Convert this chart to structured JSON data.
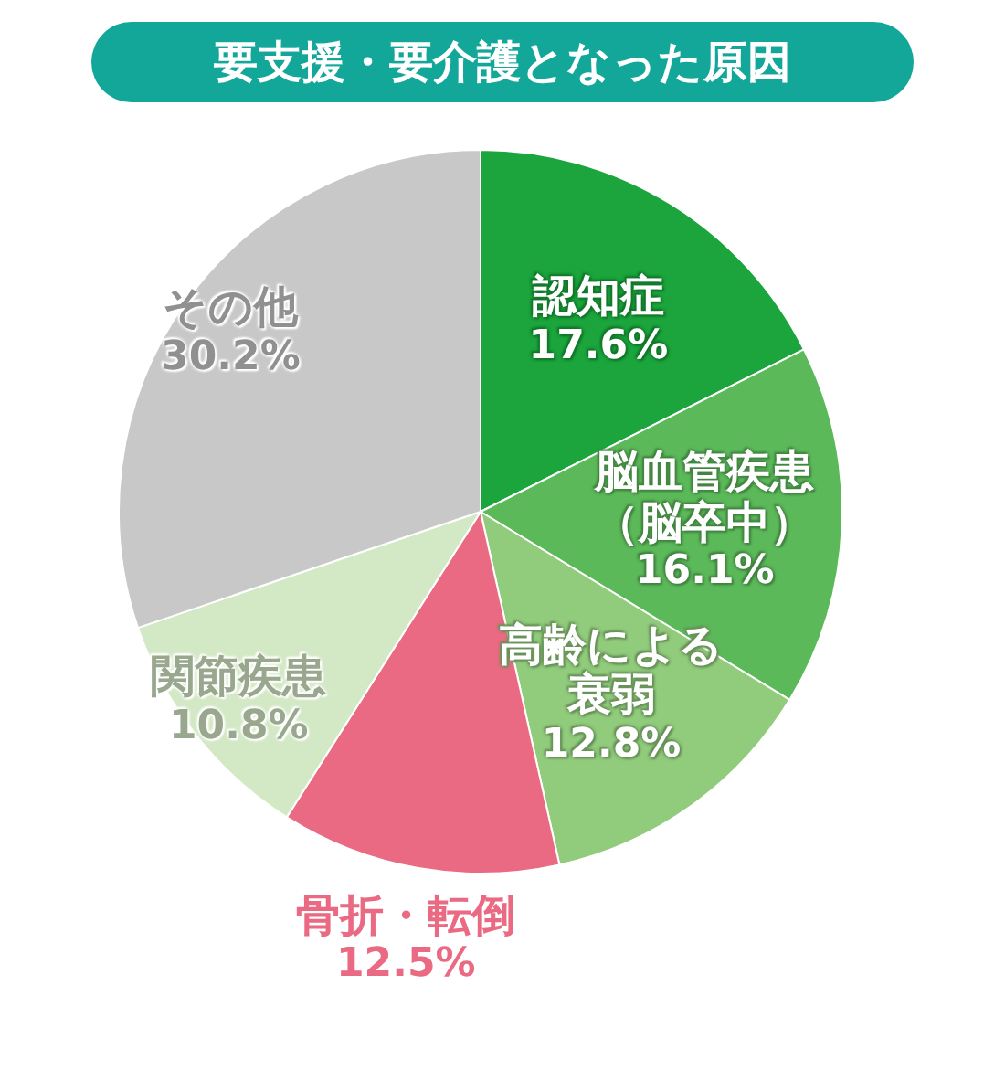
{
  "chart_data": {
    "type": "pie",
    "title": "要支援・要介護となった原因",
    "categories": [
      "認知症",
      "脳血管疾患（脳卒中）",
      "高齢による衰弱",
      "骨折・転倒",
      "関節疾患",
      "その他"
    ],
    "values": [
      17.6,
      16.1,
      12.8,
      12.5,
      10.8,
      30.2
    ],
    "value_labels": [
      "17.6%",
      "16.1%",
      "12.8%",
      "12.5%",
      "10.8%",
      "30.2%"
    ],
    "colors": [
      "#1ba53c",
      "#5cb95a",
      "#91cb7c",
      "#e96a82",
      "#d3e8c4",
      "#c8c8c8"
    ]
  }
}
